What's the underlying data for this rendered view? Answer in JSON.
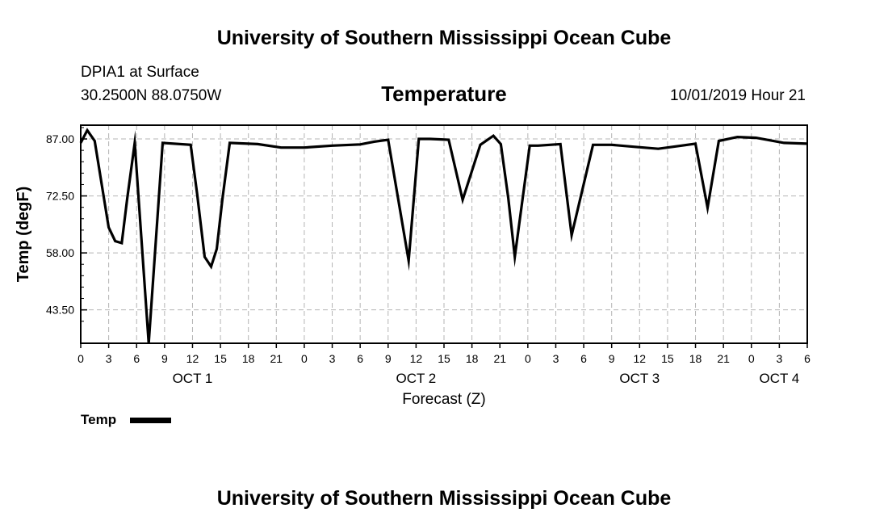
{
  "header": {
    "title": "University of Southern Mississippi Ocean Cube",
    "station": "DPIA1 at Surface",
    "coords": "30.2500N 88.0750W",
    "variable": "Temperature",
    "datetime": "10/01/2019 Hour 21",
    "footer_title": "University of Southern Mississippi Ocean Cube"
  },
  "colors": {
    "line": "#000000",
    "grid": "#b4b4b4",
    "background": "#ffffff"
  },
  "chart_data": {
    "type": "line",
    "title": "Temperature",
    "xlabel": "Forecast (Z)",
    "ylabel": "Temp (degF)",
    "ylim": [
      35.0,
      90.5
    ],
    "xlim": [
      0,
      78
    ],
    "x_unit": "hours since 10/01 00Z",
    "yticks": [
      87.0,
      72.5,
      58.0,
      43.5
    ],
    "ytick_labels": [
      "87.00",
      "72.50",
      "58.00",
      "43.50"
    ],
    "xticks": [
      0,
      3,
      6,
      9,
      12,
      15,
      18,
      21,
      24,
      27,
      30,
      33,
      36,
      39,
      42,
      45,
      48,
      51,
      54,
      57,
      60,
      63,
      66,
      69,
      72,
      75,
      78
    ],
    "xtick_labels": [
      "0",
      "3",
      "6",
      "9",
      "12",
      "15",
      "18",
      "21",
      "0",
      "3",
      "6",
      "9",
      "12",
      "15",
      "18",
      "21",
      "0",
      "3",
      "6",
      "9",
      "12",
      "15",
      "18",
      "21",
      "0",
      "3",
      "6"
    ],
    "day_labels": [
      {
        "x": 12,
        "label": "OCT 1"
      },
      {
        "x": 36,
        "label": "OCT 2"
      },
      {
        "x": 60,
        "label": "OCT 3"
      },
      {
        "x": 75,
        "label": "OCT 4"
      }
    ],
    "grid": true,
    "legend": {
      "position": "bottom-left",
      "entries": [
        "Temp"
      ]
    },
    "series": [
      {
        "name": "Temp",
        "x": [
          0,
          0.7,
          1.5,
          3,
          3.7,
          4.4,
          5,
          5.8,
          7.3,
          8.8,
          11.8,
          12.5,
          13.3,
          14,
          14.6,
          15.2,
          16,
          19,
          21.5,
          24,
          27,
          30,
          31.5,
          33,
          35.2,
          36.3,
          37.5,
          39.5,
          41,
          42.9,
          44.3,
          45.1,
          45.9,
          46.6,
          48.2,
          49.1,
          51.5,
          52.7,
          55,
          57,
          59.5,
          62,
          64.5,
          66,
          67.3,
          68.5,
          70.5,
          72.5,
          75.5,
          78
        ],
        "y": [
          86.0,
          89.2,
          86.5,
          64.5,
          61.0,
          60.5,
          72.0,
          86.0,
          35.0,
          86.0,
          85.5,
          73.0,
          57.0,
          54.5,
          59.0,
          71.5,
          86.0,
          85.7,
          84.8,
          84.8,
          85.3,
          85.6,
          86.3,
          86.8,
          56.0,
          87.0,
          87.0,
          86.8,
          71.5,
          85.5,
          87.8,
          85.7,
          72.0,
          57.0,
          85.3,
          85.3,
          85.7,
          62.5,
          85.5,
          85.5,
          85.0,
          84.5,
          85.3,
          85.8,
          69.5,
          86.5,
          87.5,
          87.3,
          86.0,
          85.8
        ]
      }
    ]
  }
}
